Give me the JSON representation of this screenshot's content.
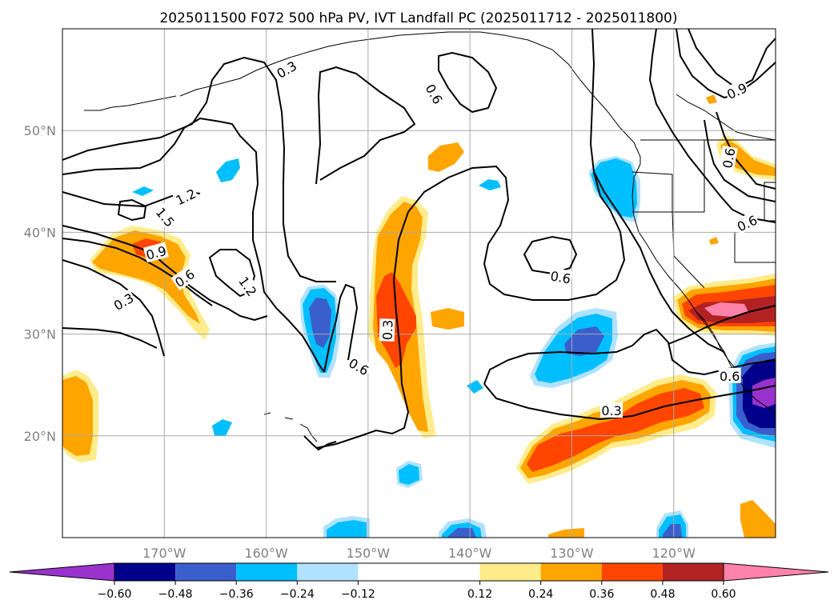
{
  "figure": {
    "title": "2025011500 F072 500 hPa PV, IVT Landfall PC (2025011712 - 2025011800)"
  },
  "map": {
    "projection": "PlateCarree",
    "lon_range": [
      -180,
      -110
    ],
    "lat_range": [
      10,
      60
    ],
    "lat_ticks": [
      {
        "value": 20,
        "label": "20°N"
      },
      {
        "value": 30,
        "label": "30°N"
      },
      {
        "value": 40,
        "label": "40°N"
      },
      {
        "value": 50,
        "label": "50°N"
      }
    ],
    "lon_ticks": [
      {
        "value": -170,
        "label": "170°W"
      },
      {
        "value": -160,
        "label": "160°W"
      },
      {
        "value": -150,
        "label": "150°W"
      },
      {
        "value": -140,
        "label": "140°W"
      },
      {
        "value": -130,
        "label": "130°W"
      },
      {
        "value": -120,
        "label": "120°W"
      }
    ],
    "grid": true,
    "coastlines": true,
    "state_borders": true
  },
  "colorbar": {
    "orientation": "horizontal",
    "extend": "both",
    "levels": [
      -0.72,
      -0.6,
      -0.48,
      -0.36,
      -0.24,
      -0.12,
      0.12,
      0.24,
      0.36,
      0.48,
      0.6,
      0.72
    ],
    "colors": [
      "#9932cc",
      "#00008b",
      "#3a5fcd",
      "#00bfff",
      "#b0e2ff",
      "#ffffff",
      "#ffec8b",
      "#ffa500",
      "#ff4500",
      "#b22222",
      "#ff82ab"
    ],
    "under_color": "#9932cc",
    "over_color": "#ff82ab",
    "tick_labels": [
      "−0.60",
      "−0.48",
      "−0.36",
      "−0.24",
      "−0.12",
      "0.12",
      "0.24",
      "0.36",
      "0.48",
      "0.60"
    ]
  },
  "pv_contour_labels": [
    {
      "text": "0.3",
      "lon": -158.0,
      "lat": 56.0,
      "rot": 30
    },
    {
      "text": "0.6",
      "lon": -143.5,
      "lat": 53.6,
      "rot": -60
    },
    {
      "text": "0.9",
      "lon": -113.8,
      "lat": 53.9,
      "rot": 25
    },
    {
      "text": "0.6",
      "lon": -114.6,
      "lat": 47.3,
      "rot": 80
    },
    {
      "text": "0.6",
      "lon": -112.8,
      "lat": 40.9,
      "rot": 25
    },
    {
      "text": "1.2",
      "lon": -167.9,
      "lat": 43.5,
      "rot": 25
    },
    {
      "text": "1.5",
      "lon": -169.9,
      "lat": 41.5,
      "rot": -50
    },
    {
      "text": "0.9",
      "lon": -170.8,
      "lat": 38.0,
      "rot": 15
    },
    {
      "text": "0.6",
      "lon": -168.0,
      "lat": 35.5,
      "rot": 35
    },
    {
      "text": "0.3",
      "lon": -174.0,
      "lat": 33.2,
      "rot": 30
    },
    {
      "text": "1.2",
      "lon": -161.8,
      "lat": 34.7,
      "rot": -55
    },
    {
      "text": "0.6",
      "lon": -150.9,
      "lat": 26.8,
      "rot": -30
    },
    {
      "text": "0.3",
      "lon": -148.1,
      "lat": 30.4,
      "rot": 88
    },
    {
      "text": "0.6",
      "lon": -131.1,
      "lat": 35.6,
      "rot": -10
    },
    {
      "text": "0.6",
      "lon": -114.5,
      "lat": 25.9,
      "rot": 0
    },
    {
      "text": "0.3",
      "lon": -126.1,
      "lat": 22.5,
      "rot": 0
    }
  ]
}
